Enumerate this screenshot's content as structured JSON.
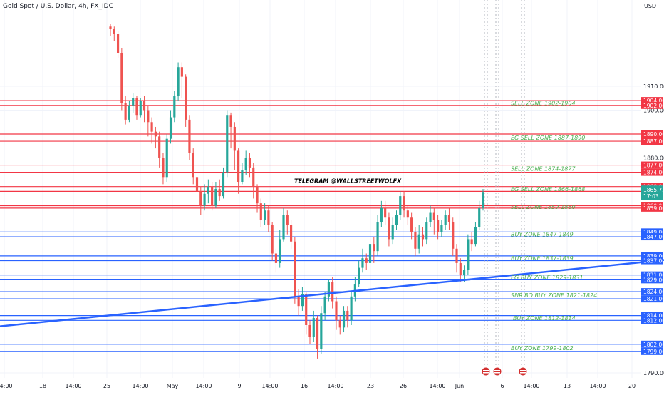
{
  "header": {
    "symbol_title": "Gold Spot / U.S. Dollar, 4h, FX_IDC",
    "currency": "USD"
  },
  "price_badge": {
    "price": "1865.75",
    "countdown": "17:03",
    "color": "#26a69a"
  },
  "colors": {
    "background": "#ffffff",
    "up_candle": "#26a69a",
    "down_candle": "#ef5350",
    "sell_line": "#f23645",
    "buy_line": "#2962ff",
    "trendline": "#2962ff",
    "zone_text": "#4caf50",
    "grid": "#f0f3fa",
    "axis_text": "#131722"
  },
  "annotation": {
    "text": "TELEGRAM @WALLSTREETWOLFX"
  },
  "chart_data": {
    "type": "line",
    "title": "Gold Spot / U.S. Dollar, 4h, FX_IDC",
    "ylabel": "USD",
    "ylim": [
      1788,
      1934
    ],
    "y_ticks": [
      "1790.00",
      "1880.00",
      "1900.00",
      "1910.00"
    ],
    "x_ticks": [
      "14:00",
      "18",
      "14:00",
      "25",
      "14:00",
      "May",
      "14:00",
      "9",
      "14:00",
      "16",
      "14:00",
      "23",
      "26",
      "14:00",
      "Jun",
      "6",
      "14:00",
      "13",
      "14:00",
      "20"
    ],
    "grid": true,
    "last_price": 1865.75,
    "levels": [
      {
        "price": 1904.0,
        "label": "1904.00",
        "kind": "sell"
      },
      {
        "price": 1902.0,
        "label": "1902.00",
        "kind": "sell"
      },
      {
        "price": 1890.0,
        "label": "1890.00",
        "kind": "sell"
      },
      {
        "price": 1887.0,
        "label": "1887.00",
        "kind": "sell"
      },
      {
        "price": 1877.0,
        "label": "1877.00",
        "kind": "sell"
      },
      {
        "price": 1874.0,
        "label": "1874.00",
        "kind": "sell"
      },
      {
        "price": 1868.0,
        "label": "1868.00",
        "kind": "sell"
      },
      {
        "price": 1866.0,
        "label": "1866.00",
        "kind": "sell"
      },
      {
        "price": 1860.0,
        "label": "1860.00",
        "kind": "sell"
      },
      {
        "price": 1859.0,
        "label": "1859.00",
        "kind": "sell"
      },
      {
        "price": 1849.0,
        "label": "1849.00",
        "kind": "buy"
      },
      {
        "price": 1847.0,
        "label": "1847.00",
        "kind": "buy"
      },
      {
        "price": 1839.0,
        "label": "1839.00",
        "kind": "buy"
      },
      {
        "price": 1837.0,
        "label": "1837.00",
        "kind": "buy"
      },
      {
        "price": 1831.0,
        "label": "1831.00",
        "kind": "buy"
      },
      {
        "price": 1829.0,
        "label": "1829.00",
        "kind": "buy"
      },
      {
        "price": 1824.0,
        "label": "1824.00",
        "kind": "buy"
      },
      {
        "price": 1821.0,
        "label": "1821.00",
        "kind": "buy"
      },
      {
        "price": 1814.0,
        "label": "1814.00",
        "kind": "buy"
      },
      {
        "price": 1812.0,
        "label": "1812.00",
        "kind": "buy"
      },
      {
        "price": 1802.0,
        "label": "1802.00",
        "kind": "buy"
      },
      {
        "price": 1799.0,
        "label": "1799.00",
        "kind": "buy"
      }
    ],
    "zone_labels": [
      {
        "text": "SELL ZONE 1902-1904",
        "price": 1903
      },
      {
        "text": "EG SELL ZONE 1887-1890",
        "price": 1888.5
      },
      {
        "text": "SELL ZONE 1874-1877",
        "price": 1875.5
      },
      {
        "text": "EG SELL ZONE 1866-1868",
        "price": 1867
      },
      {
        "text": "SELL ZONE 1859-1860",
        "price": 1859.5
      },
      {
        "text": "BUY ZONE 1847-1849",
        "price": 1848
      },
      {
        "text": "BUY ZONE 1837-1839",
        "price": 1838
      },
      {
        "text": "EG BUY ZONE 1829-1831",
        "price": 1830
      },
      {
        "text": "SNR BO BUY ZONE 1821-1824",
        "price": 1822.5
      },
      {
        "text": "BUY ZONE 1812-1814",
        "price": 1813
      },
      {
        "text": "BUY ZONE 1799-1802",
        "price": 1800.5
      }
    ],
    "trendline": {
      "from": {
        "x": "14:00 (first tick)",
        "y": 1809.5
      },
      "to": {
        "x": "20 (last tick)",
        "y": 1837.5
      }
    },
    "candles": [
      [
        1935,
        1934,
        1936,
        1931
      ],
      [
        1934,
        1932,
        1935,
        1929
      ],
      [
        1932,
        1924,
        1933,
        1922
      ],
      [
        1924,
        1903,
        1926,
        1900
      ],
      [
        1903,
        1896,
        1906,
        1894
      ],
      [
        1896,
        1902,
        1904,
        1895
      ],
      [
        1902,
        1905,
        1907,
        1899
      ],
      [
        1905,
        1898,
        1906,
        1896
      ],
      [
        1898,
        1904,
        1905,
        1897
      ],
      [
        1904,
        1900,
        1906,
        1895
      ],
      [
        1900,
        1895,
        1902,
        1889
      ],
      [
        1895,
        1891,
        1897,
        1886
      ],
      [
        1891,
        1889,
        1893,
        1884
      ],
      [
        1889,
        1880,
        1891,
        1876
      ],
      [
        1880,
        1872,
        1882,
        1869
      ],
      [
        1872,
        1888,
        1890,
        1870
      ],
      [
        1888,
        1897,
        1900,
        1886
      ],
      [
        1897,
        1906,
        1908,
        1895
      ],
      [
        1906,
        1918,
        1920,
        1904
      ],
      [
        1918,
        1914,
        1920,
        1905
      ],
      [
        1914,
        1896,
        1915,
        1893
      ],
      [
        1896,
        1882,
        1898,
        1879
      ],
      [
        1882,
        1872,
        1884,
        1869
      ],
      [
        1872,
        1866,
        1874,
        1858
      ],
      [
        1866,
        1860,
        1868,
        1856
      ],
      [
        1860,
        1865,
        1869,
        1858
      ],
      [
        1865,
        1868,
        1871,
        1861
      ],
      [
        1868,
        1860,
        1870,
        1858
      ],
      [
        1860,
        1867,
        1870,
        1859
      ],
      [
        1867,
        1864,
        1871,
        1862
      ],
      [
        1864,
        1874,
        1876,
        1863
      ],
      [
        1874,
        1898,
        1900,
        1872
      ],
      [
        1898,
        1893,
        1899,
        1884
      ],
      [
        1893,
        1883,
        1895,
        1875
      ],
      [
        1883,
        1870,
        1884,
        1865
      ],
      [
        1870,
        1875,
        1878,
        1869
      ],
      [
        1875,
        1880,
        1883,
        1873
      ],
      [
        1880,
        1876,
        1882,
        1872
      ],
      [
        1876,
        1868,
        1878,
        1863
      ],
      [
        1868,
        1861,
        1869,
        1857
      ],
      [
        1861,
        1854,
        1863,
        1851
      ],
      [
        1854,
        1858,
        1861,
        1852
      ],
      [
        1858,
        1852,
        1860,
        1849
      ],
      [
        1852,
        1840,
        1853,
        1837
      ],
      [
        1840,
        1836,
        1842,
        1832
      ],
      [
        1836,
        1846,
        1850,
        1834
      ],
      [
        1846,
        1856,
        1859,
        1845
      ],
      [
        1856,
        1852,
        1858,
        1848
      ],
      [
        1852,
        1845,
        1854,
        1842
      ],
      [
        1845,
        1822,
        1847,
        1819
      ],
      [
        1822,
        1818,
        1825,
        1814
      ],
      [
        1818,
        1823,
        1826,
        1816
      ],
      [
        1823,
        1810,
        1824,
        1806
      ],
      [
        1810,
        1805,
        1812,
        1802
      ],
      [
        1805,
        1813,
        1816,
        1803
      ],
      [
        1813,
        1800,
        1814,
        1796
      ],
      [
        1800,
        1815,
        1818,
        1798
      ],
      [
        1815,
        1822,
        1824,
        1812
      ],
      [
        1822,
        1828,
        1829,
        1820
      ],
      [
        1828,
        1820,
        1830,
        1817
      ],
      [
        1820,
        1812,
        1822,
        1808
      ],
      [
        1812,
        1809,
        1814,
        1806
      ],
      [
        1809,
        1816,
        1818,
        1807
      ],
      [
        1816,
        1812,
        1818,
        1809
      ],
      [
        1812,
        1822,
        1824,
        1810
      ],
      [
        1822,
        1827,
        1830,
        1820
      ],
      [
        1827,
        1834,
        1837,
        1826
      ],
      [
        1834,
        1838,
        1842,
        1832
      ],
      [
        1838,
        1836,
        1840,
        1833
      ],
      [
        1836,
        1844,
        1846,
        1834
      ],
      [
        1844,
        1841,
        1847,
        1836
      ],
      [
        1841,
        1853,
        1856,
        1839
      ],
      [
        1853,
        1859,
        1862,
        1851
      ],
      [
        1859,
        1855,
        1862,
        1852
      ],
      [
        1855,
        1846,
        1857,
        1843
      ],
      [
        1846,
        1852,
        1855,
        1844
      ],
      [
        1852,
        1856,
        1858,
        1850
      ],
      [
        1856,
        1864,
        1866,
        1854
      ],
      [
        1864,
        1858,
        1866,
        1855
      ],
      [
        1858,
        1855,
        1860,
        1852
      ],
      [
        1855,
        1849,
        1857,
        1846
      ],
      [
        1849,
        1842,
        1851,
        1839
      ],
      [
        1842,
        1848,
        1852,
        1840
      ],
      [
        1848,
        1846,
        1851,
        1843
      ],
      [
        1846,
        1853,
        1855,
        1844
      ],
      [
        1853,
        1857,
        1860,
        1851
      ],
      [
        1857,
        1854,
        1859,
        1848
      ],
      [
        1854,
        1849,
        1856,
        1846
      ],
      [
        1849,
        1852,
        1854,
        1847
      ],
      [
        1852,
        1856,
        1858,
        1850
      ],
      [
        1856,
        1853,
        1859,
        1850
      ],
      [
        1853,
        1842,
        1855,
        1839
      ],
      [
        1842,
        1836,
        1844,
        1832
      ],
      [
        1836,
        1831,
        1838,
        1828
      ],
      [
        1831,
        1833,
        1835,
        1828
      ],
      [
        1833,
        1846,
        1848,
        1831
      ],
      [
        1846,
        1844,
        1849,
        1841
      ],
      [
        1844,
        1851,
        1853,
        1843
      ],
      [
        1851,
        1859,
        1862,
        1850
      ],
      [
        1859,
        1865.75,
        1867,
        1858
      ]
    ]
  }
}
